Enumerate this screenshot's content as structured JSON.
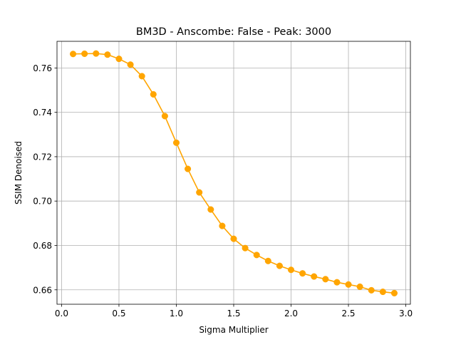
{
  "chart_data": {
    "type": "line",
    "title": "BM3D - Anscombe: False - Peak: 3000",
    "xlabel": "Sigma Multiplier",
    "ylabel": "SSIM Denoised",
    "xlim": [
      -0.04,
      3.04
    ],
    "ylim": [
      0.6535,
      0.772
    ],
    "grid": true,
    "x_ticks": [
      0.0,
      0.5,
      1.0,
      1.5,
      2.0,
      2.5,
      3.0
    ],
    "x_tick_labels": [
      "0.0",
      "0.5",
      "1.0",
      "1.5",
      "2.0",
      "2.5",
      "3.0"
    ],
    "y_ticks": [
      0.66,
      0.68,
      0.7,
      0.72,
      0.74,
      0.76
    ],
    "y_tick_labels": [
      "0.66",
      "0.68",
      "0.70",
      "0.72",
      "0.74",
      "0.76"
    ],
    "series": [
      {
        "color": "#ffa500",
        "marker": "circle",
        "x": [
          0.1,
          0.2,
          0.3,
          0.4,
          0.5,
          0.6,
          0.7,
          0.8,
          0.9,
          1.0,
          1.1,
          1.2,
          1.3,
          1.4,
          1.5,
          1.6,
          1.7,
          1.8,
          1.9,
          2.0,
          2.1,
          2.2,
          2.3,
          2.4,
          2.5,
          2.6,
          2.7,
          2.8,
          2.9
        ],
        "y": [
          0.7663,
          0.7664,
          0.7665,
          0.766,
          0.7641,
          0.7615,
          0.7563,
          0.7481,
          0.7383,
          0.7263,
          0.7145,
          0.7039,
          0.6962,
          0.6888,
          0.683,
          0.6788,
          0.6757,
          0.673,
          0.6708,
          0.669,
          0.6674,
          0.666,
          0.6648,
          0.6634,
          0.6624,
          0.6614,
          0.6598,
          0.6591,
          0.6585
        ]
      }
    ]
  }
}
